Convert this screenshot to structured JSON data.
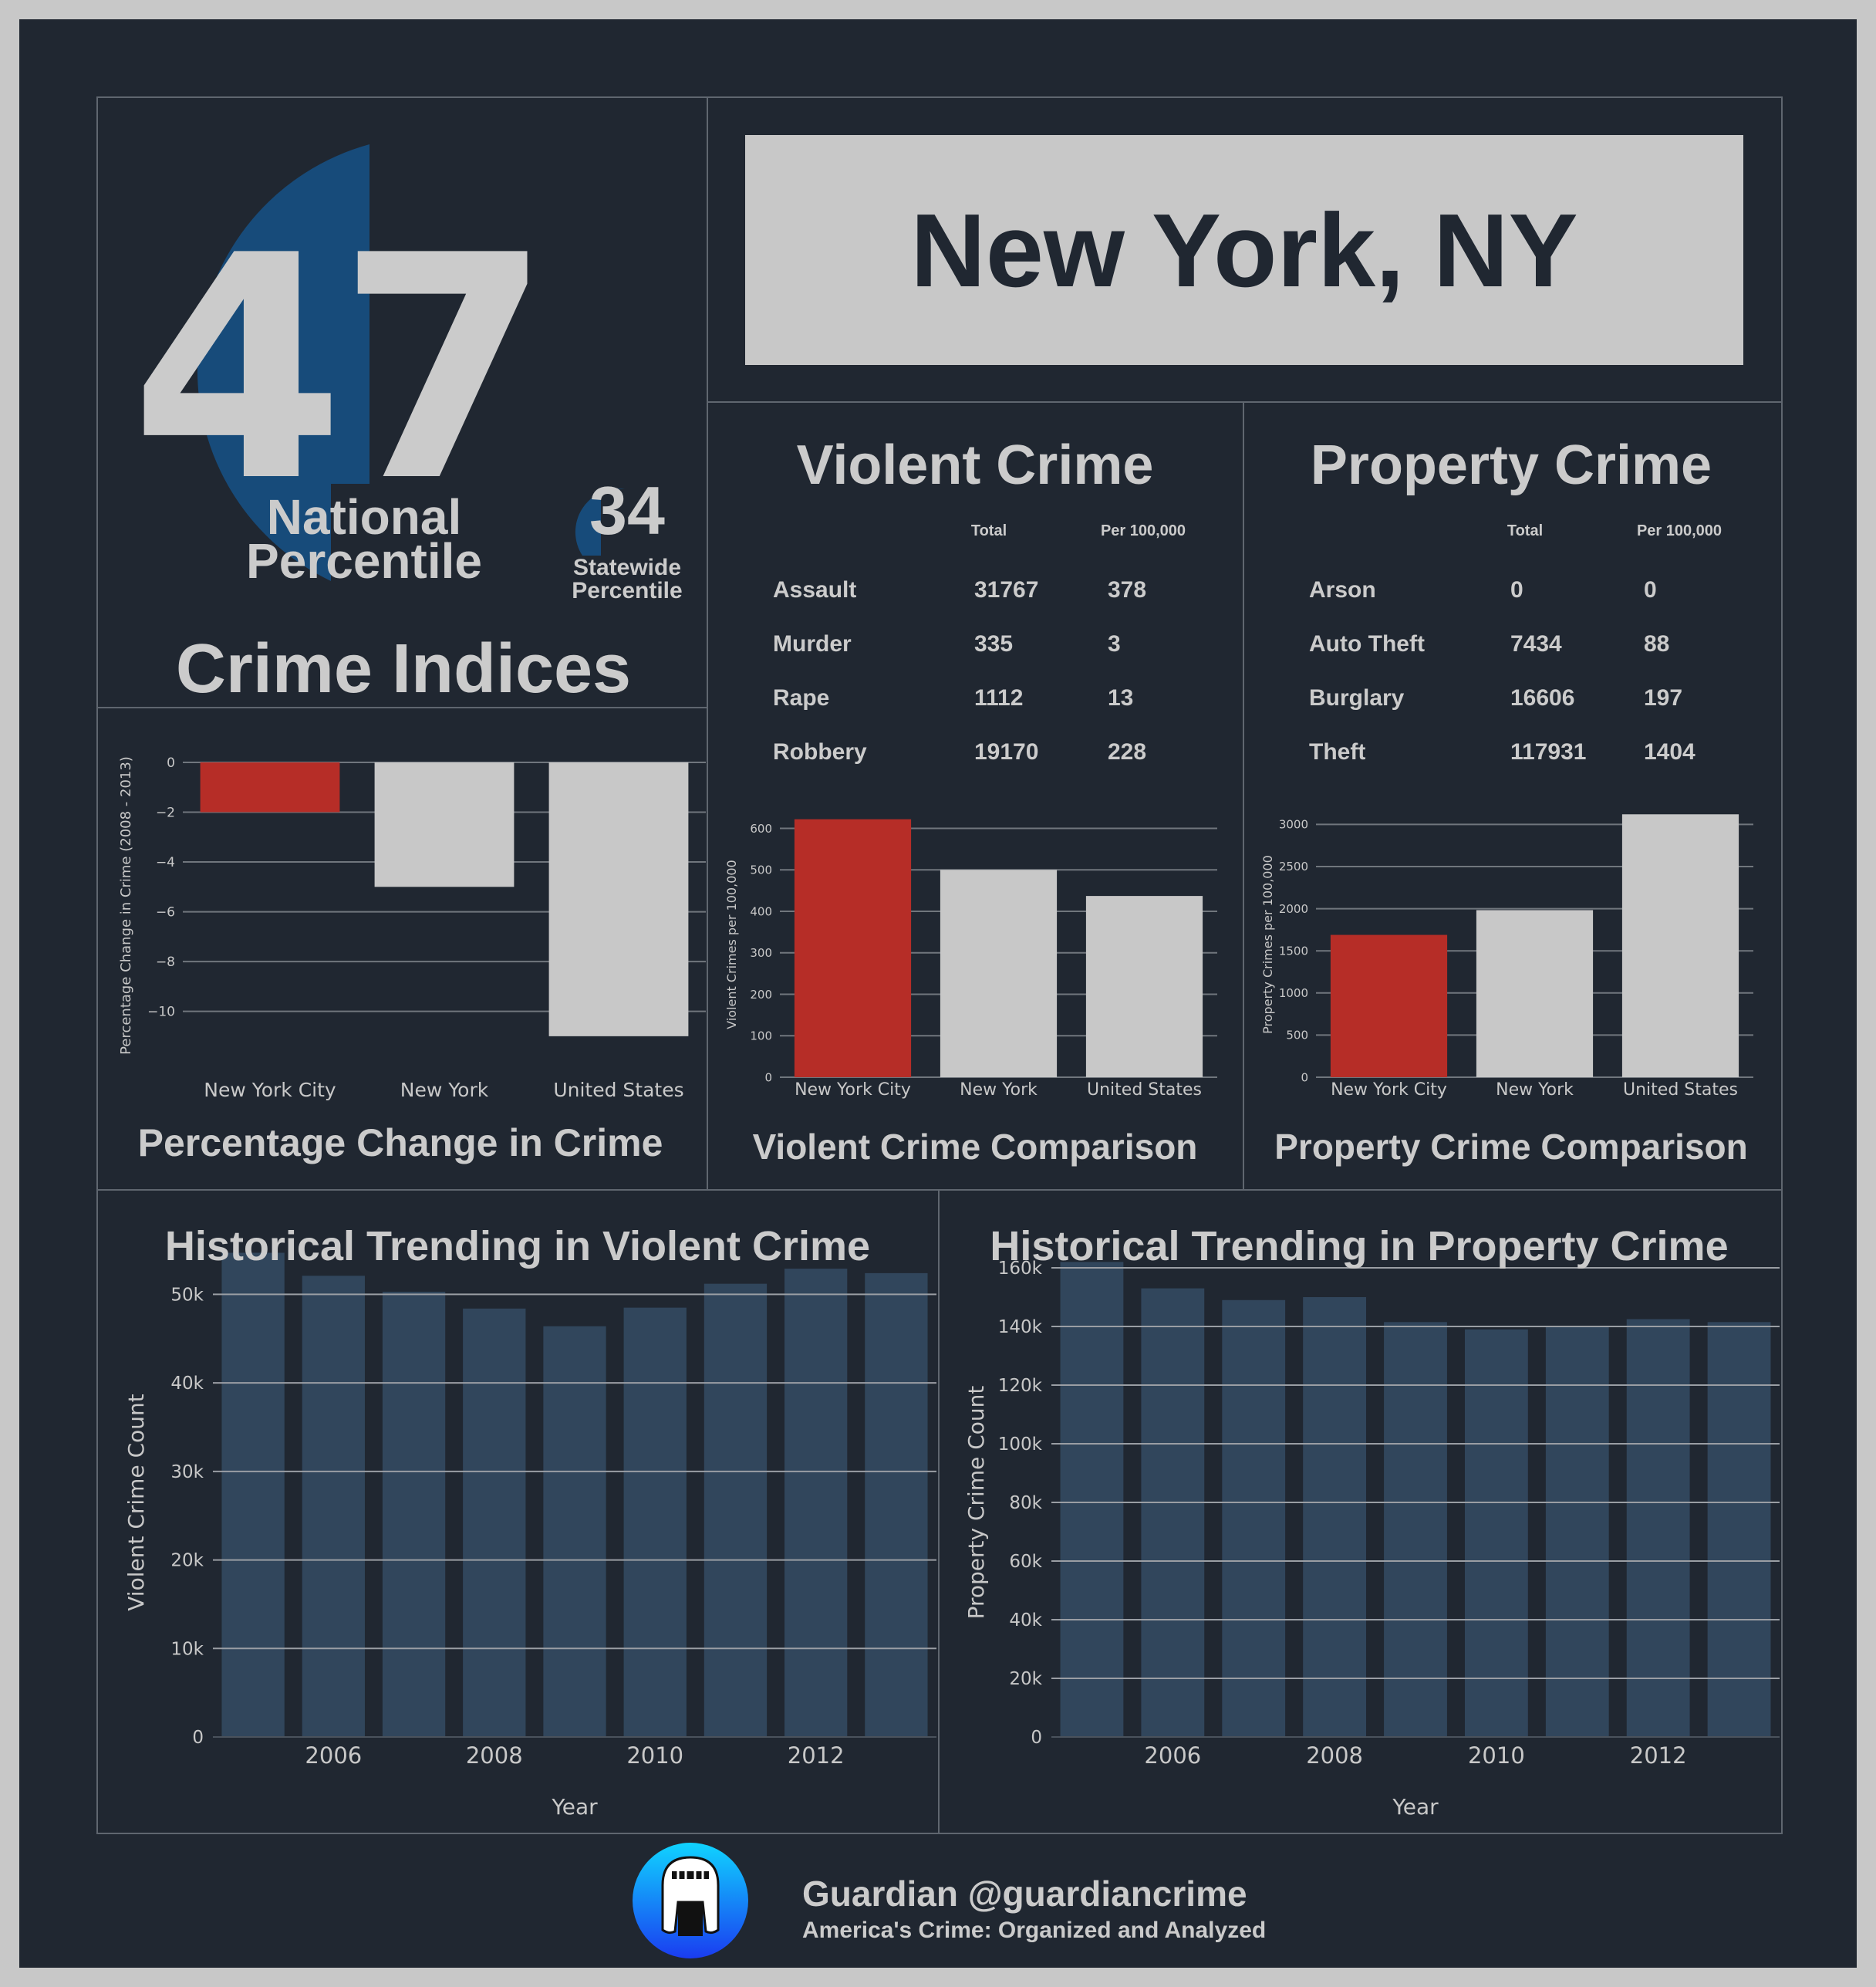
{
  "indices": {
    "national_percentile": 47,
    "national_label_1": "National",
    "national_label_2": "Percentile",
    "statewide_percentile": 34,
    "statewide_label_1": "Statewide",
    "statewide_label_2": "Percentile",
    "title": "Crime Indices"
  },
  "city": "New York, NY",
  "violent": {
    "title": "Violent Crime",
    "col_total": "Total",
    "col_per": "Per 100,000",
    "rows": [
      {
        "label": "Assault",
        "total": "31767",
        "per": "378"
      },
      {
        "label": "Murder",
        "total": "335",
        "per": "3"
      },
      {
        "label": "Rape",
        "total": "1112",
        "per": "13"
      },
      {
        "label": "Robbery",
        "total": "19170",
        "per": "228"
      }
    ]
  },
  "property": {
    "title": "Property Crime",
    "col_total": "Total",
    "col_per": "Per 100,000",
    "rows": [
      {
        "label": "Arson",
        "total": "0",
        "per": "0"
      },
      {
        "label": "Auto Theft",
        "total": "7434",
        "per": "88"
      },
      {
        "label": "Burglary",
        "total": "16606",
        "per": "197"
      },
      {
        "label": "Theft",
        "total": "117931",
        "per": "1404"
      }
    ]
  },
  "colors": {
    "highlight": "#b62d27",
    "neutral": "#c8c8c8",
    "history_bar": "#31465c",
    "circle": "#174b7a",
    "background": "#202731"
  },
  "chart_data": [
    {
      "id": "pct_change",
      "type": "bar",
      "title": "Percentage Change in Crime",
      "ylabel": "Percentage Change in Crime (2008 - 2013)",
      "categories": [
        "New York City",
        "New York",
        "United States"
      ],
      "values": [
        -2,
        -5,
        -11
      ],
      "ylim": [
        -11.5,
        0
      ],
      "yticks": [
        0,
        -2,
        -4,
        -6,
        -8,
        -10
      ],
      "highlight_index": 0
    },
    {
      "id": "violent_cmp",
      "type": "bar",
      "title": "Violent Crime Comparison",
      "ylabel": "Violent Crimes per 100,000",
      "categories": [
        "New York City",
        "New York",
        "United States"
      ],
      "values": [
        622,
        500,
        437
      ],
      "ylim": [
        0,
        640
      ],
      "yticks": [
        0,
        100,
        200,
        300,
        400,
        500,
        600
      ],
      "highlight_index": 0
    },
    {
      "id": "property_cmp",
      "type": "bar",
      "title": "Property Crime Comparison",
      "ylabel": "Property Crimes per 100,000",
      "categories": [
        "New York City",
        "New York",
        "United States"
      ],
      "values": [
        1689,
        1983,
        3120
      ],
      "ylim": [
        0,
        3150
      ],
      "yticks": [
        0,
        500,
        1000,
        1500,
        2000,
        2500,
        3000
      ],
      "highlight_index": 0
    },
    {
      "id": "violent_hist",
      "type": "bar",
      "title": "Historical Trending in Violent Crime",
      "xlabel": "Year",
      "ylabel": "Violent Crime Count",
      "x": [
        2005,
        2006,
        2007,
        2008,
        2009,
        2010,
        2011,
        2012,
        2013
      ],
      "xticks": [
        2006,
        2008,
        2010,
        2012
      ],
      "values": [
        54700,
        52100,
        50300,
        48400,
        46400,
        48500,
        51200,
        52900,
        52400
      ],
      "ylim": [
        0,
        53000
      ],
      "yticks": [
        0,
        10000,
        20000,
        30000,
        40000,
        50000
      ],
      "ytick_labels": [
        "0",
        "10k",
        "20k",
        "30k",
        "40k",
        "50k"
      ]
    },
    {
      "id": "property_hist",
      "type": "bar",
      "title": "Historical Trending in Property Crime",
      "xlabel": "Year",
      "ylabel": "Property Crime Count",
      "x": [
        2005,
        2006,
        2007,
        2008,
        2009,
        2010,
        2011,
        2012,
        2013
      ],
      "xticks": [
        2006,
        2008,
        2010,
        2012
      ],
      "values": [
        162000,
        153000,
        149000,
        150000,
        141500,
        139000,
        140000,
        142500,
        141500
      ],
      "ylim": [
        0,
        160000
      ],
      "yticks": [
        0,
        20000,
        40000,
        60000,
        80000,
        100000,
        120000,
        140000,
        160000
      ],
      "ytick_labels": [
        "0",
        "20k",
        "40k",
        "60k",
        "80k",
        "100k",
        "120k",
        "140k",
        "160k"
      ]
    }
  ],
  "footer": {
    "handle": "Guardian @guardiancrime",
    "tagline": "America's Crime: Organized and Analyzed",
    "logo_icon": "knight-helmet-icon"
  }
}
